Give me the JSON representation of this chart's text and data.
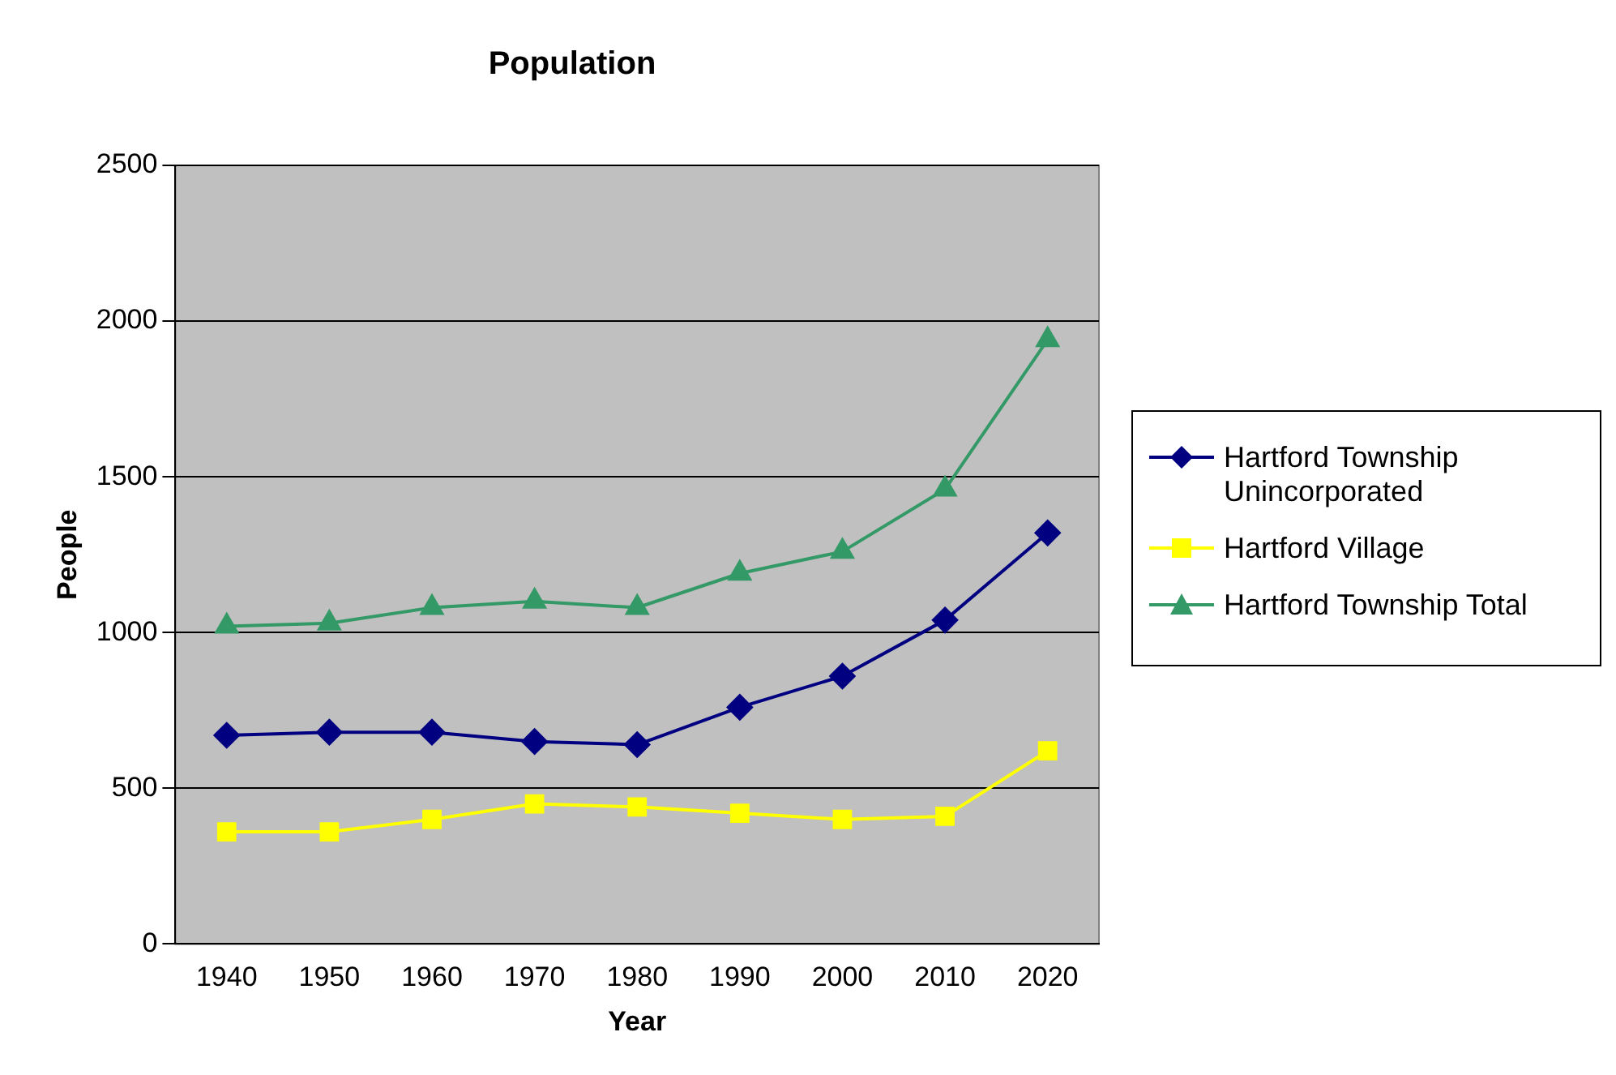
{
  "chart_data": {
    "type": "line",
    "title": "Population",
    "xlabel": "Year",
    "ylabel": "People",
    "categories": [
      "1940",
      "1950",
      "1960",
      "1970",
      "1980",
      "1990",
      "2000",
      "2010",
      "2020"
    ],
    "series": [
      {
        "name": "Hartford Township Unincorporated",
        "color": "#000080",
        "marker": "diamond",
        "values": [
          670,
          680,
          680,
          650,
          640,
          760,
          860,
          1040,
          1320
        ]
      },
      {
        "name": "Hartford Village",
        "color": "#ffff00",
        "marker": "square",
        "values": [
          360,
          360,
          400,
          450,
          440,
          420,
          400,
          410,
          620
        ]
      },
      {
        "name": "Hartford Township Total",
        "color": "#339966",
        "marker": "triangle",
        "values": [
          1020,
          1030,
          1080,
          1100,
          1080,
          1190,
          1260,
          1460,
          1940
        ]
      }
    ],
    "ylim": [
      0,
      2500
    ],
    "yticks": [
      0,
      500,
      1000,
      1500,
      2000,
      2500
    ],
    "grid": "y",
    "legend": "right",
    "line_style": "solid"
  }
}
